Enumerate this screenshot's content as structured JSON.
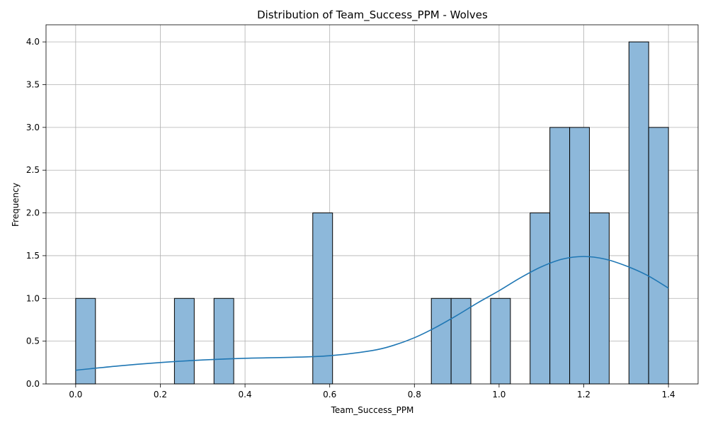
{
  "chart_data": {
    "type": "bar",
    "title": "Distribution of Team_Success_PPM - Wolves",
    "xlabel": "Team_Success_PPM",
    "ylabel": "Frequency",
    "xlim": [
      -0.07,
      1.47
    ],
    "ylim": [
      0,
      4.2
    ],
    "grid": true,
    "bar_color": "#8db8da",
    "bar_edge_color": "#000000",
    "kde_color": "#1f77b4",
    "x_ticks": [
      0.0,
      0.2,
      0.4,
      0.6,
      0.8,
      1.0,
      1.2,
      1.4
    ],
    "x_tick_labels": [
      "0.0",
      "0.2",
      "0.4",
      "0.6",
      "0.8",
      "1.0",
      "1.2",
      "1.4"
    ],
    "y_ticks": [
      0.0,
      0.5,
      1.0,
      1.5,
      2.0,
      2.5,
      3.0,
      3.5,
      4.0
    ],
    "y_tick_labels": [
      "0.0",
      "0.5",
      "1.0",
      "1.5",
      "2.0",
      "2.5",
      "3.0",
      "3.5",
      "4.0"
    ],
    "bins": [
      {
        "start": 0.0,
        "end": 0.0467,
        "count": 1
      },
      {
        "start": 0.2333,
        "end": 0.28,
        "count": 1
      },
      {
        "start": 0.3267,
        "end": 0.3733,
        "count": 1
      },
      {
        "start": 0.56,
        "end": 0.6067,
        "count": 2
      },
      {
        "start": 0.84,
        "end": 0.8867,
        "count": 1
      },
      {
        "start": 0.8867,
        "end": 0.9333,
        "count": 1
      },
      {
        "start": 0.98,
        "end": 1.0267,
        "count": 1
      },
      {
        "start": 1.0733,
        "end": 1.12,
        "count": 2
      },
      {
        "start": 1.12,
        "end": 1.1667,
        "count": 3
      },
      {
        "start": 1.1667,
        "end": 1.2133,
        "count": 3
      },
      {
        "start": 1.2133,
        "end": 1.26,
        "count": 2
      },
      {
        "start": 1.3067,
        "end": 1.3533,
        "count": 4
      },
      {
        "start": 1.3533,
        "end": 1.4,
        "count": 3
      }
    ],
    "kde": {
      "x": [
        0.0,
        0.1,
        0.2,
        0.3,
        0.4,
        0.5,
        0.6,
        0.7,
        0.75,
        0.8,
        0.85,
        0.9,
        0.95,
        1.0,
        1.05,
        1.1,
        1.15,
        1.2,
        1.25,
        1.3,
        1.35,
        1.4
      ],
      "y": [
        0.16,
        0.21,
        0.25,
        0.28,
        0.3,
        0.31,
        0.33,
        0.39,
        0.45,
        0.54,
        0.66,
        0.8,
        0.95,
        1.09,
        1.24,
        1.37,
        1.46,
        1.49,
        1.46,
        1.38,
        1.27,
        1.12
      ]
    }
  }
}
